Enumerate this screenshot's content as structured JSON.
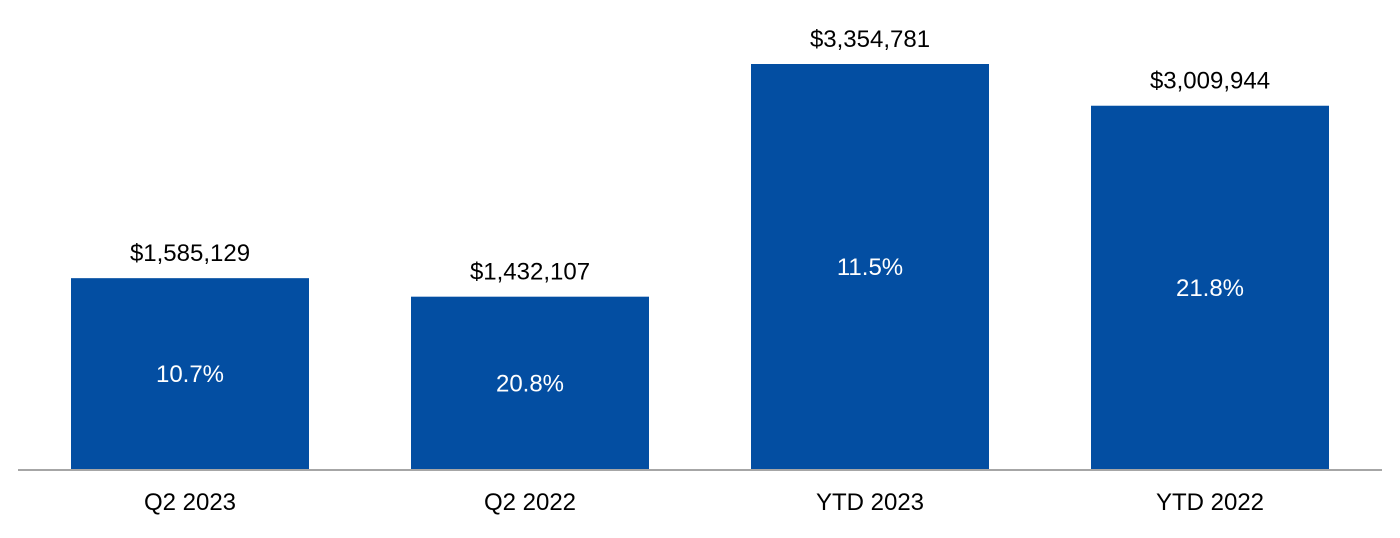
{
  "chart_data": {
    "type": "bar",
    "categories": [
      "Q2 2023",
      "Q2 2022",
      "YTD 2023",
      "YTD 2022"
    ],
    "values": [
      1585129,
      1432107,
      3354781,
      3009944
    ],
    "data_labels": [
      "$1,585,129",
      "$1,432,107",
      "$3,354,781",
      "$3,009,944"
    ],
    "inner_labels": [
      "10.7%",
      "20.8%",
      "11.5%",
      "21.8%"
    ],
    "ylim": [
      0,
      3354781
    ],
    "grid": false,
    "legend": "none",
    "colors": {
      "bar": "#034EA2",
      "axis": "#A6A6A6",
      "text": "#000000",
      "inner_text": "#FFFFFF"
    }
  }
}
